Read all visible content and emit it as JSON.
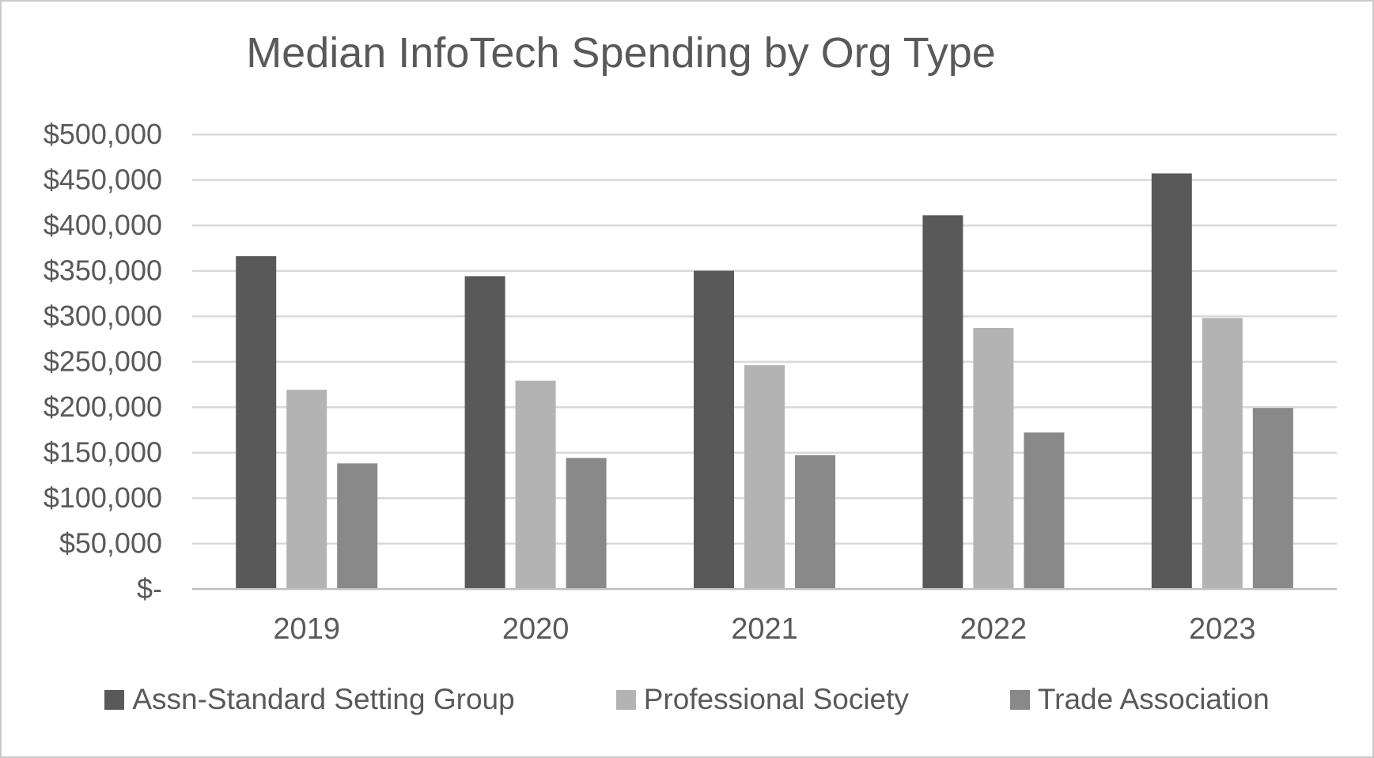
{
  "page": {
    "background": "#ffffff",
    "frame_border_color": "#c9c9c9"
  },
  "chart_data": {
    "type": "bar",
    "title": "Median InfoTech Spending by Org Type",
    "categories": [
      "2019",
      "2020",
      "2021",
      "2022",
      "2023"
    ],
    "series": [
      {
        "name": "Assn-Standard Setting Group",
        "color": "#595959",
        "values": [
          366000,
          344000,
          350000,
          411000,
          457000
        ]
      },
      {
        "name": "Professional Society",
        "color": "#b3b3b3",
        "values": [
          219000,
          229000,
          246000,
          287000,
          298000
        ]
      },
      {
        "name": "Trade Association",
        "color": "#898989",
        "values": [
          138000,
          144000,
          147000,
          172000,
          199000
        ]
      }
    ],
    "ylim": [
      0,
      500000
    ],
    "y_tick_step": 50000,
    "y_tick_labels": [
      "$-",
      "$50,000",
      "$100,000",
      "$150,000",
      "$200,000",
      "$250,000",
      "$300,000",
      "$350,000",
      "$400,000",
      "$450,000",
      "$500,000"
    ],
    "grid": "horizontal",
    "legend_position": "bottom",
    "text_color": "#595959",
    "gridline_color": "#d9d9d9",
    "axis_line_color": "#bfbfbf"
  }
}
